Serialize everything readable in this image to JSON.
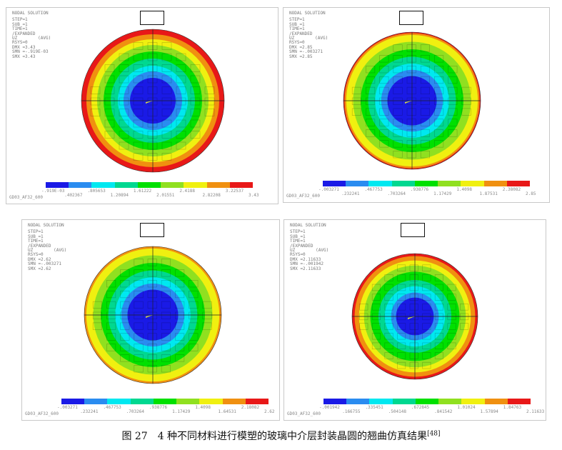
{
  "colors": [
    "#1a1ae6",
    "#2a8cf0",
    "#00e8f0",
    "#00d890",
    "#00e000",
    "#90e020",
    "#f0f010",
    "#f09010",
    "#e81818"
  ],
  "panels": [
    {
      "title": "NODAL SOLUTION",
      "lines": [
        "STEP=1",
        "SUB =1",
        "TIME=1",
        "/EXPANDED",
        "UZ        (AVG)",
        "RSYS=0",
        "DMX =3.43",
        "SMN =-.919E-03",
        "SMX =3.43"
      ],
      "ticks": [
        "-.919E-03",
        ".402367",
        ".805653",
        "1.20894",
        "1.61222",
        "2.01551",
        "2.4188",
        "2.82208",
        "3.22537",
        "3.43"
      ],
      "model": "GD03_AF32_600"
    },
    {
      "title": "NODAL SOLUTION",
      "lines": [
        "STEP=1",
        "SUB =1",
        "TIME=1",
        "/EXPANDED",
        "UZ        (AVG)",
        "RSYS=0",
        "DMX =2.85",
        "SMN =-.003271",
        "SMX =2.85"
      ],
      "ticks": [
        "-.003271",
        ".232241",
        ".467753",
        ".703264",
        ".938776",
        "1.17429",
        "1.4098",
        "1.87531",
        "2.38082",
        "2.85"
      ],
      "model": "GD03_AF32_600"
    },
    {
      "title": "NODAL SOLUTION",
      "lines": [
        "STEP=1",
        "SUB =1",
        "TIME=1",
        "/EXPANDED",
        "UZ        (AVG)",
        "RSYS=0",
        "DMX =2.62",
        "SMN =-.003271",
        "SMX =2.62"
      ],
      "ticks": [
        "-.003271",
        ".232241",
        ".467753",
        ".703264",
        ".938776",
        "1.17429",
        "1.4098",
        "1.64531",
        "2.18082",
        "2.62"
      ],
      "model": "GD03_AF32_600"
    },
    {
      "title": "NODAL SOLUTION",
      "lines": [
        "STEP=1",
        "SUB =1",
        "TIME=1",
        "/EXPANDED",
        "UZ        (AVG)",
        "RSYS=0",
        "DMX =2.11633",
        "SMN =-.001942",
        "SMX =2.11633"
      ],
      "ticks": [
        "-.001942",
        ".166755",
        ".335451",
        ".504148",
        ".672845",
        ".841542",
        "1.01024",
        "1.57894",
        "1.84763",
        "2.11633"
      ],
      "model": "GD03_AF32_600"
    }
  ],
  "caption": {
    "text": "图 27　4 种不同材料进行模塑的玻璃中介层封装晶圆的翘曲仿真结果",
    "ref": "[48]"
  }
}
